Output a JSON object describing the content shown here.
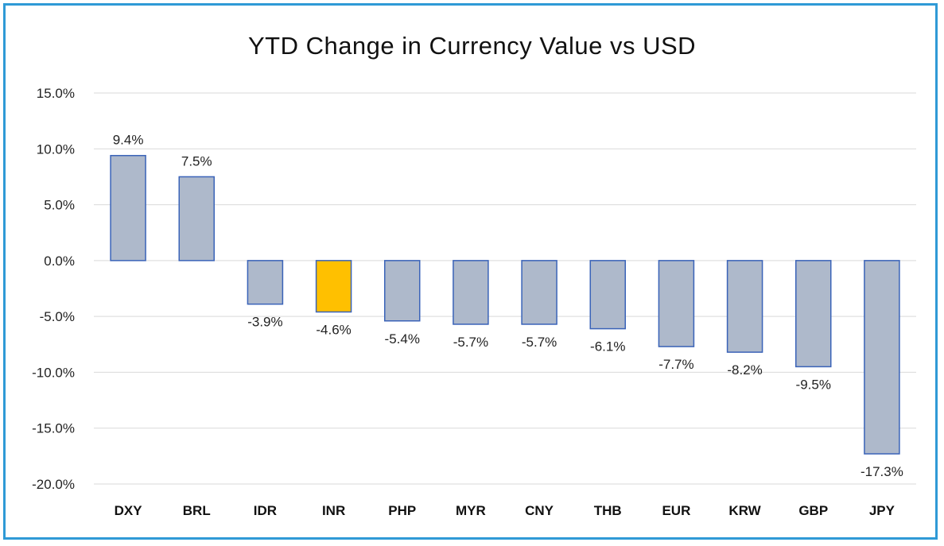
{
  "chart_data": {
    "type": "bar",
    "title": "YTD Change in Currency Value vs USD",
    "categories": [
      "DXY",
      "BRL",
      "IDR",
      "INR",
      "PHP",
      "MYR",
      "CNY",
      "THB",
      "EUR",
      "KRW",
      "GBP",
      "JPY"
    ],
    "values": [
      9.4,
      7.5,
      -3.9,
      -4.6,
      -5.4,
      -5.7,
      -5.7,
      -6.1,
      -7.7,
      -8.2,
      -9.5,
      -17.3
    ],
    "data_labels": [
      "9.4%",
      "7.5%",
      "-3.9%",
      "-4.6%",
      "-5.4%",
      "-5.7%",
      "-5.7%",
      "-6.1%",
      "-7.7%",
      "-8.2%",
      "-9.5%",
      "-17.3%"
    ],
    "y_ticks": [
      15,
      10,
      5,
      0,
      -5,
      -10,
      -15,
      -20
    ],
    "y_tick_labels": [
      "15.0%",
      "10.0%",
      "5.0%",
      "0.0%",
      "-5.0%",
      "-10.0%",
      "-15.0%",
      "-20.0%"
    ],
    "ylim": [
      -20,
      15
    ],
    "grid": true,
    "legend": "none",
    "xlabel": "",
    "ylabel": "",
    "highlight_category": "INR",
    "colors": {
      "bar_fill": "#aeb9cb",
      "bar_stroke": "#3a63b8",
      "highlight_fill": "#ffc000",
      "grid": "#d9d9d9",
      "frame": "#2f9ad6"
    }
  }
}
